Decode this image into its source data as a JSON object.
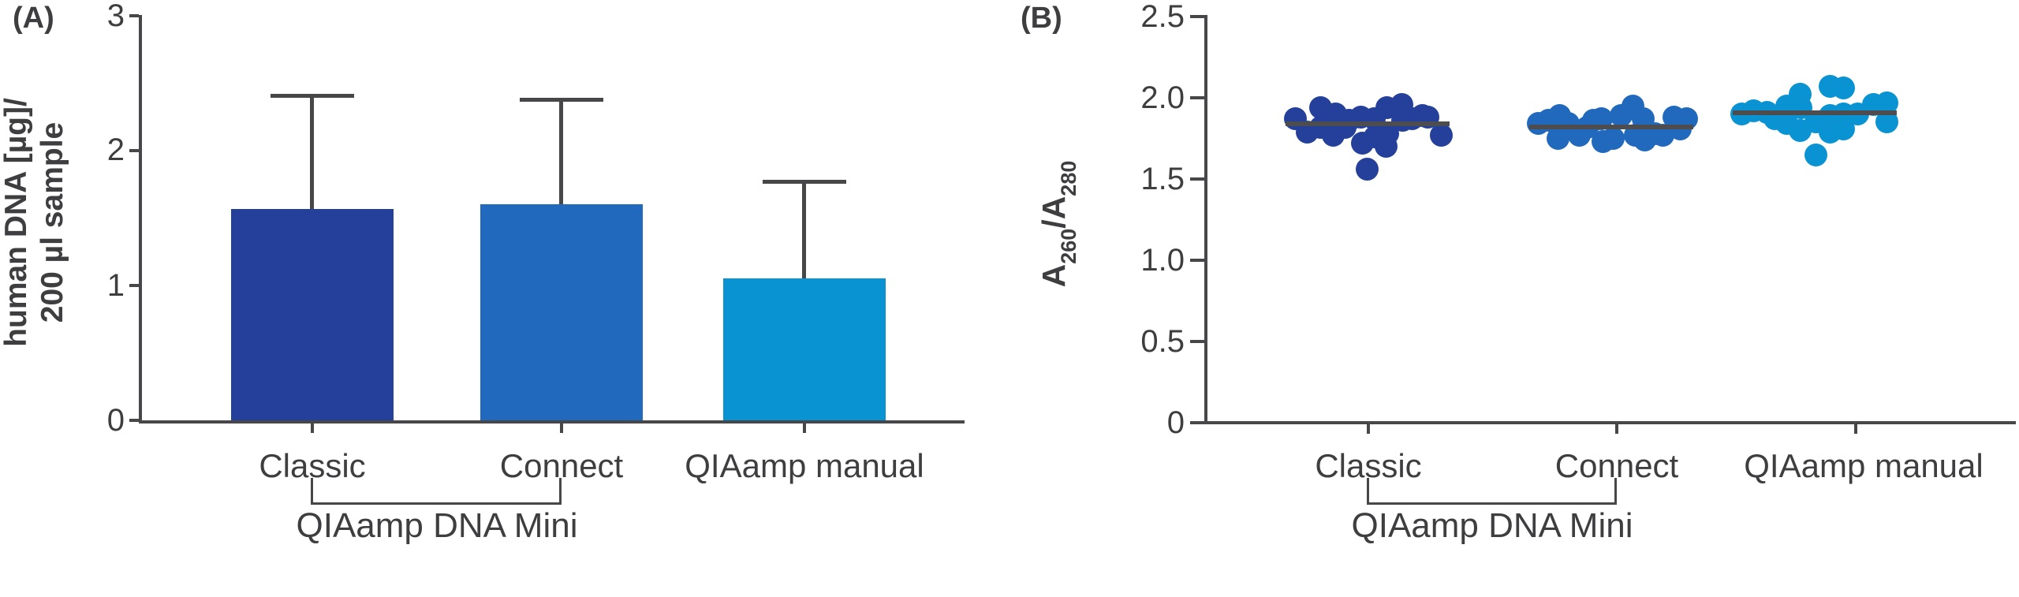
{
  "panels": {
    "a": "(A)",
    "b": "(B)"
  },
  "colors": {
    "axis": "#47474a",
    "text": "#3e3e40",
    "median_line": "#4d4d50",
    "series": [
      "#24409a",
      "#2169bd",
      "#0a93d2"
    ]
  },
  "chart_data": [
    {
      "type": "bar",
      "panel": "A",
      "ylabel_line1": "human DNA [µg]/",
      "ylabel_line2": "200 µl sample",
      "categories": [
        "Classic",
        "Connect",
        "QIAamp manual"
      ],
      "values": [
        1.57,
        1.6,
        1.05
      ],
      "error_upper": [
        2.41,
        2.38,
        1.77
      ],
      "ylim": [
        0,
        3
      ],
      "grid": false,
      "yticks": [
        {
          "label": "3",
          "value": 3
        },
        {
          "label": "2",
          "value": 2
        },
        {
          "label": "1",
          "value": 1
        },
        {
          "label": "0",
          "value": 0
        }
      ],
      "bracket": {
        "from": "Classic",
        "to": "Connect",
        "label": "QIAamp DNA Mini"
      }
    },
    {
      "type": "scatter",
      "panel": "B",
      "ylabel": {
        "base1": "A",
        "sub1": "260",
        "base2": "/A",
        "sub2": "280"
      },
      "categories": [
        "Classic",
        "Connect",
        "QIAamp manual"
      ],
      "medians": [
        1.84,
        1.82,
        1.91
      ],
      "ylim": [
        0,
        2.5
      ],
      "grid": false,
      "yticks": [
        {
          "label": "2.5",
          "value": 2.5
        },
        {
          "label": "2.0",
          "value": 2.0
        },
        {
          "label": "1.5",
          "value": 1.5
        },
        {
          "label": "1.0",
          "value": 1.0
        },
        {
          "label": "0.5",
          "value": 0.5
        },
        {
          "label": "0",
          "value": 0
        }
      ],
      "series": [
        {
          "name": "Classic",
          "median": 1.84,
          "points": [
            [
              -92,
              1.87
            ],
            [
              -77,
              1.79
            ],
            [
              -60,
              1.94
            ],
            [
              -60,
              1.82
            ],
            [
              -44,
              1.77
            ],
            [
              -41,
              1.9
            ],
            [
              -29,
              1.82
            ],
            [
              -24,
              1.86
            ],
            [
              -9,
              1.88
            ],
            [
              -7,
              1.72
            ],
            [
              8,
              1.87
            ],
            [
              9,
              1.76
            ],
            [
              24,
              1.94
            ],
            [
              25,
              1.78
            ],
            [
              43,
              1.96
            ],
            [
              44,
              1.86
            ],
            [
              56,
              1.87
            ],
            [
              69,
              1.89
            ],
            [
              76,
              1.88
            ],
            [
              93,
              1.77
            ],
            [
              23,
              1.7
            ],
            [
              -1,
              1.56
            ]
          ]
        },
        {
          "name": "Connect",
          "median": 1.82,
          "points": [
            [
              -93,
              1.84
            ],
            [
              -80,
              1.86
            ],
            [
              -68,
              1.75
            ],
            [
              -66,
              1.89
            ],
            [
              -55,
              1.84
            ],
            [
              -41,
              1.77
            ],
            [
              -31,
              1.82
            ],
            [
              -23,
              1.86
            ],
            [
              -13,
              1.87
            ],
            [
              -11,
              1.73
            ],
            [
              2,
              1.75
            ],
            [
              12,
              1.89
            ],
            [
              27,
              1.95
            ],
            [
              30,
              1.77
            ],
            [
              40,
              1.87
            ],
            [
              42,
              1.74
            ],
            [
              55,
              1.78
            ],
            [
              65,
              1.77
            ],
            [
              79,
              1.88
            ],
            [
              87,
              1.81
            ],
            [
              95,
              1.87
            ]
          ]
        },
        {
          "name": "QIAamp manual",
          "median": 1.91,
          "points": [
            [
              -93,
              1.9
            ],
            [
              -78,
              1.92
            ],
            [
              -61,
              1.91
            ],
            [
              -51,
              1.87
            ],
            [
              -36,
              1.95
            ],
            [
              -36,
              1.84
            ],
            [
              -19,
              2.02
            ],
            [
              -19,
              1.8
            ],
            [
              -18,
              1.94
            ],
            [
              1,
              1.85
            ],
            [
              1,
              1.65
            ],
            [
              19,
              2.07
            ],
            [
              19,
              1.89
            ],
            [
              19,
              1.79
            ],
            [
              36,
              2.06
            ],
            [
              36,
              1.9
            ],
            [
              36,
              1.81
            ],
            [
              54,
              1.9
            ],
            [
              74,
              1.96
            ],
            [
              91,
              1.97
            ],
            [
              91,
              1.85
            ]
          ]
        }
      ],
      "bracket": {
        "from": "Classic",
        "to": "Connect",
        "label": "QIAamp DNA Mini"
      }
    }
  ]
}
